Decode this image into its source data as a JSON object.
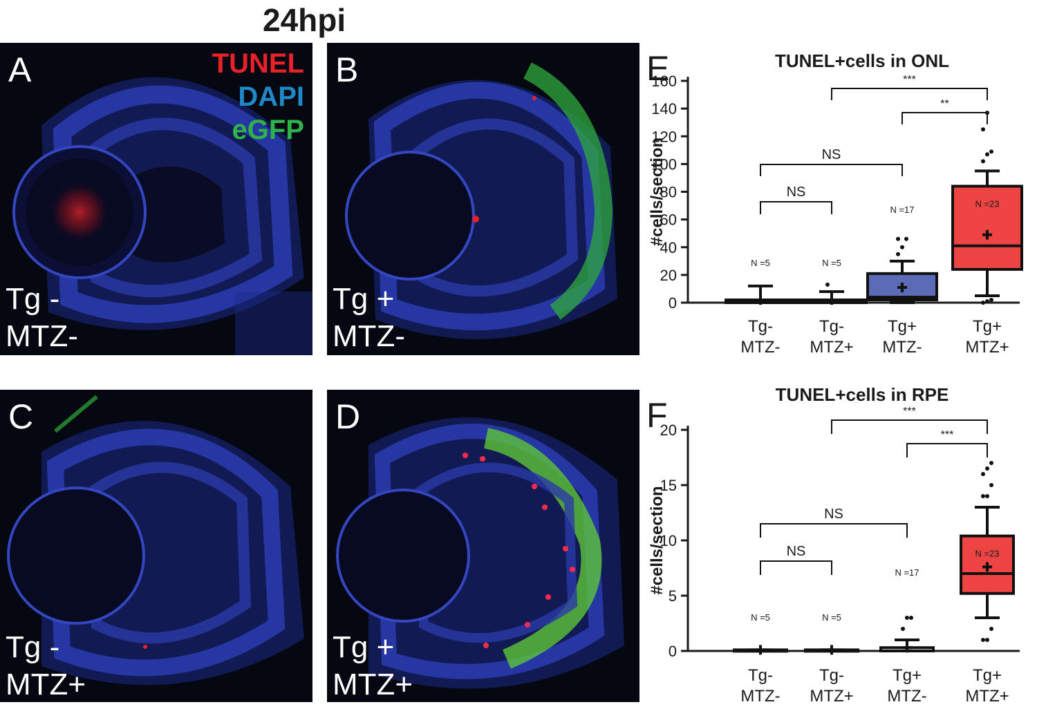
{
  "figure": {
    "title": "24hpi"
  },
  "panels": [
    {
      "letter": "A",
      "line1": "Tg -",
      "line2": "MTZ-"
    },
    {
      "letter": "B",
      "line1": "Tg +",
      "line2": "MTZ-"
    },
    {
      "letter": "C",
      "line1": "Tg -",
      "line2": "MTZ+"
    },
    {
      "letter": "D",
      "line1": "Tg +",
      "line2": "MTZ+"
    }
  ],
  "legend": {
    "tunel": "TUNEL",
    "dapi": "DAPI",
    "egfp": "eGFP",
    "colors": {
      "tunel": "#e8202a",
      "dapi": "#1e88c8",
      "egfp": "#2db34a"
    }
  },
  "chart_data": [
    {
      "letter": "E",
      "type": "box",
      "title": "TUNEL+cells in ONL",
      "ylabel": "#cells/section",
      "ylim": [
        0,
        160
      ],
      "yticks": [
        0,
        20,
        40,
        60,
        80,
        100,
        120,
        140,
        160
      ],
      "categories": [
        [
          "Tg-",
          "MTZ-"
        ],
        [
          "Tg-",
          "MTZ+"
        ],
        [
          "Tg+",
          "MTZ-"
        ],
        [
          "Tg+",
          "MTZ+"
        ]
      ],
      "n_labels": [
        "N =5",
        "N =5",
        "N =17",
        "N =23"
      ],
      "boxes": [
        {
          "whisker_low": 0,
          "q1": 0,
          "median": 1,
          "q3": 2,
          "whisker_high": 12,
          "mean": 2,
          "color": "#ffffff",
          "outliers": []
        },
        {
          "whisker_low": 0,
          "q1": 0,
          "median": 1,
          "q3": 2,
          "whisker_high": 8,
          "mean": 2,
          "color": "#ffffff",
          "outliers": [
            13
          ]
        },
        {
          "whisker_low": 0,
          "q1": 2,
          "median": 4,
          "q3": 21,
          "whisker_high": 30,
          "mean": 11,
          "color": "#5c6bb5",
          "outliers": [
            35,
            40,
            46,
            46
          ]
        },
        {
          "whisker_low": 5,
          "q1": 24,
          "median": 41,
          "q3": 84,
          "whisker_high": 95,
          "mean": 49,
          "color": "#ee4444",
          "outliers": [
            0,
            1,
            2,
            102,
            107,
            109,
            125,
            137
          ]
        }
      ],
      "comparisons": [
        {
          "from": 0,
          "to": 1,
          "label": "NS"
        },
        {
          "from": 0,
          "to": 2,
          "label": "NS"
        },
        {
          "from": 2,
          "to": 3,
          "label": "**"
        },
        {
          "from": 1,
          "to": 3,
          "label": "***"
        }
      ]
    },
    {
      "letter": "F",
      "type": "box",
      "title": "TUNEL+cells in RPE",
      "ylabel": "#cells/section",
      "ylim": [
        0,
        20
      ],
      "yticks": [
        0,
        5,
        10,
        15,
        20
      ],
      "categories": [
        [
          "Tg-",
          "MTZ-"
        ],
        [
          "Tg-",
          "MTZ+"
        ],
        [
          "Tg+",
          "MTZ-"
        ],
        [
          "Tg+",
          "MTZ+"
        ]
      ],
      "n_labels": [
        "N =5",
        "N =5",
        "N =17",
        "N =23"
      ],
      "boxes": [
        {
          "whisker_low": 0,
          "q1": 0,
          "median": 0,
          "q3": 0.1,
          "whisker_high": 0.1,
          "mean": 0.1,
          "color": "#ffffff",
          "outliers": []
        },
        {
          "whisker_low": 0,
          "q1": 0,
          "median": 0,
          "q3": 0.1,
          "whisker_high": 0.1,
          "mean": 0.1,
          "color": "#ffffff",
          "outliers": []
        },
        {
          "whisker_low": 0,
          "q1": 0,
          "median": 0,
          "q3": 0.3,
          "whisker_high": 1,
          "mean": 0.3,
          "color": "#ffffff",
          "outliers": [
            2,
            3,
            3
          ]
        },
        {
          "whisker_low": 3,
          "q1": 5.2,
          "median": 7,
          "q3": 10.4,
          "whisker_high": 13,
          "mean": 7.6,
          "color": "#ee4444",
          "outliers": [
            1,
            1,
            2,
            14,
            14,
            15,
            16,
            16.5,
            17
          ]
        }
      ],
      "comparisons": [
        {
          "from": 0,
          "to": 1,
          "label": "NS"
        },
        {
          "from": 0,
          "to": 2,
          "label": "NS"
        },
        {
          "from": 2,
          "to": 3,
          "label": "***"
        },
        {
          "from": 1,
          "to": 3,
          "label": "***"
        }
      ]
    }
  ]
}
